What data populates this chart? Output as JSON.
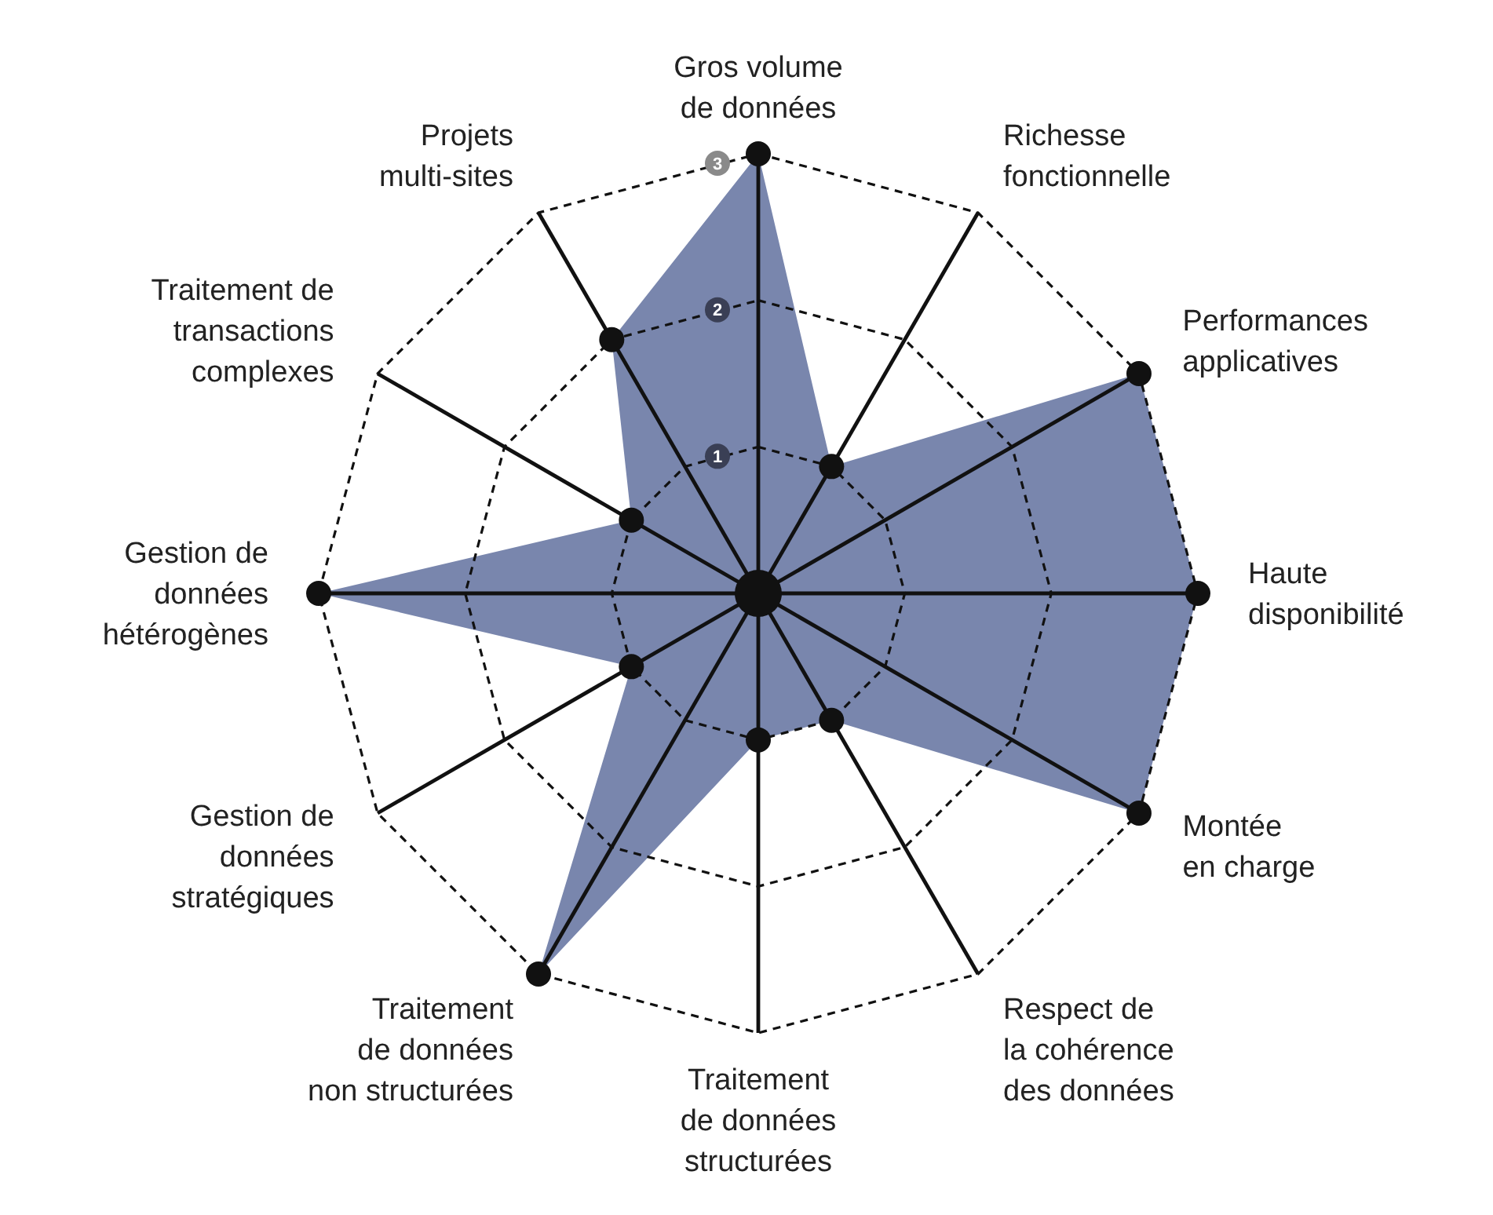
{
  "chart_data": {
    "type": "radar",
    "categories": [
      "Gros volume\nde données",
      "Richesse\nfonctionnelle",
      "Performances\napplicatives",
      "Haute\ndisponibilité",
      "Montée\nen charge",
      "Respect de\nla cohérence\ndes données",
      "Traitement\nde données\nstructurées",
      "Traitement\nde données\nnon structurées",
      "Gestion de\ndonnées\nstratégiques",
      "Gestion de\ndonnées\nhétérogènes",
      "Traitement de\ntransactions\ncomplexes",
      "Projets\nmulti-sites"
    ],
    "series": [
      {
        "color": "#7986ad",
        "values": [
          3,
          1,
          3,
          3,
          3,
          1,
          1,
          3,
          1,
          3,
          1,
          2
        ]
      }
    ],
    "ylim": [
      0,
      3
    ],
    "yticks": [
      1,
      2,
      3
    ],
    "grid": true,
    "marker": "circle"
  }
}
